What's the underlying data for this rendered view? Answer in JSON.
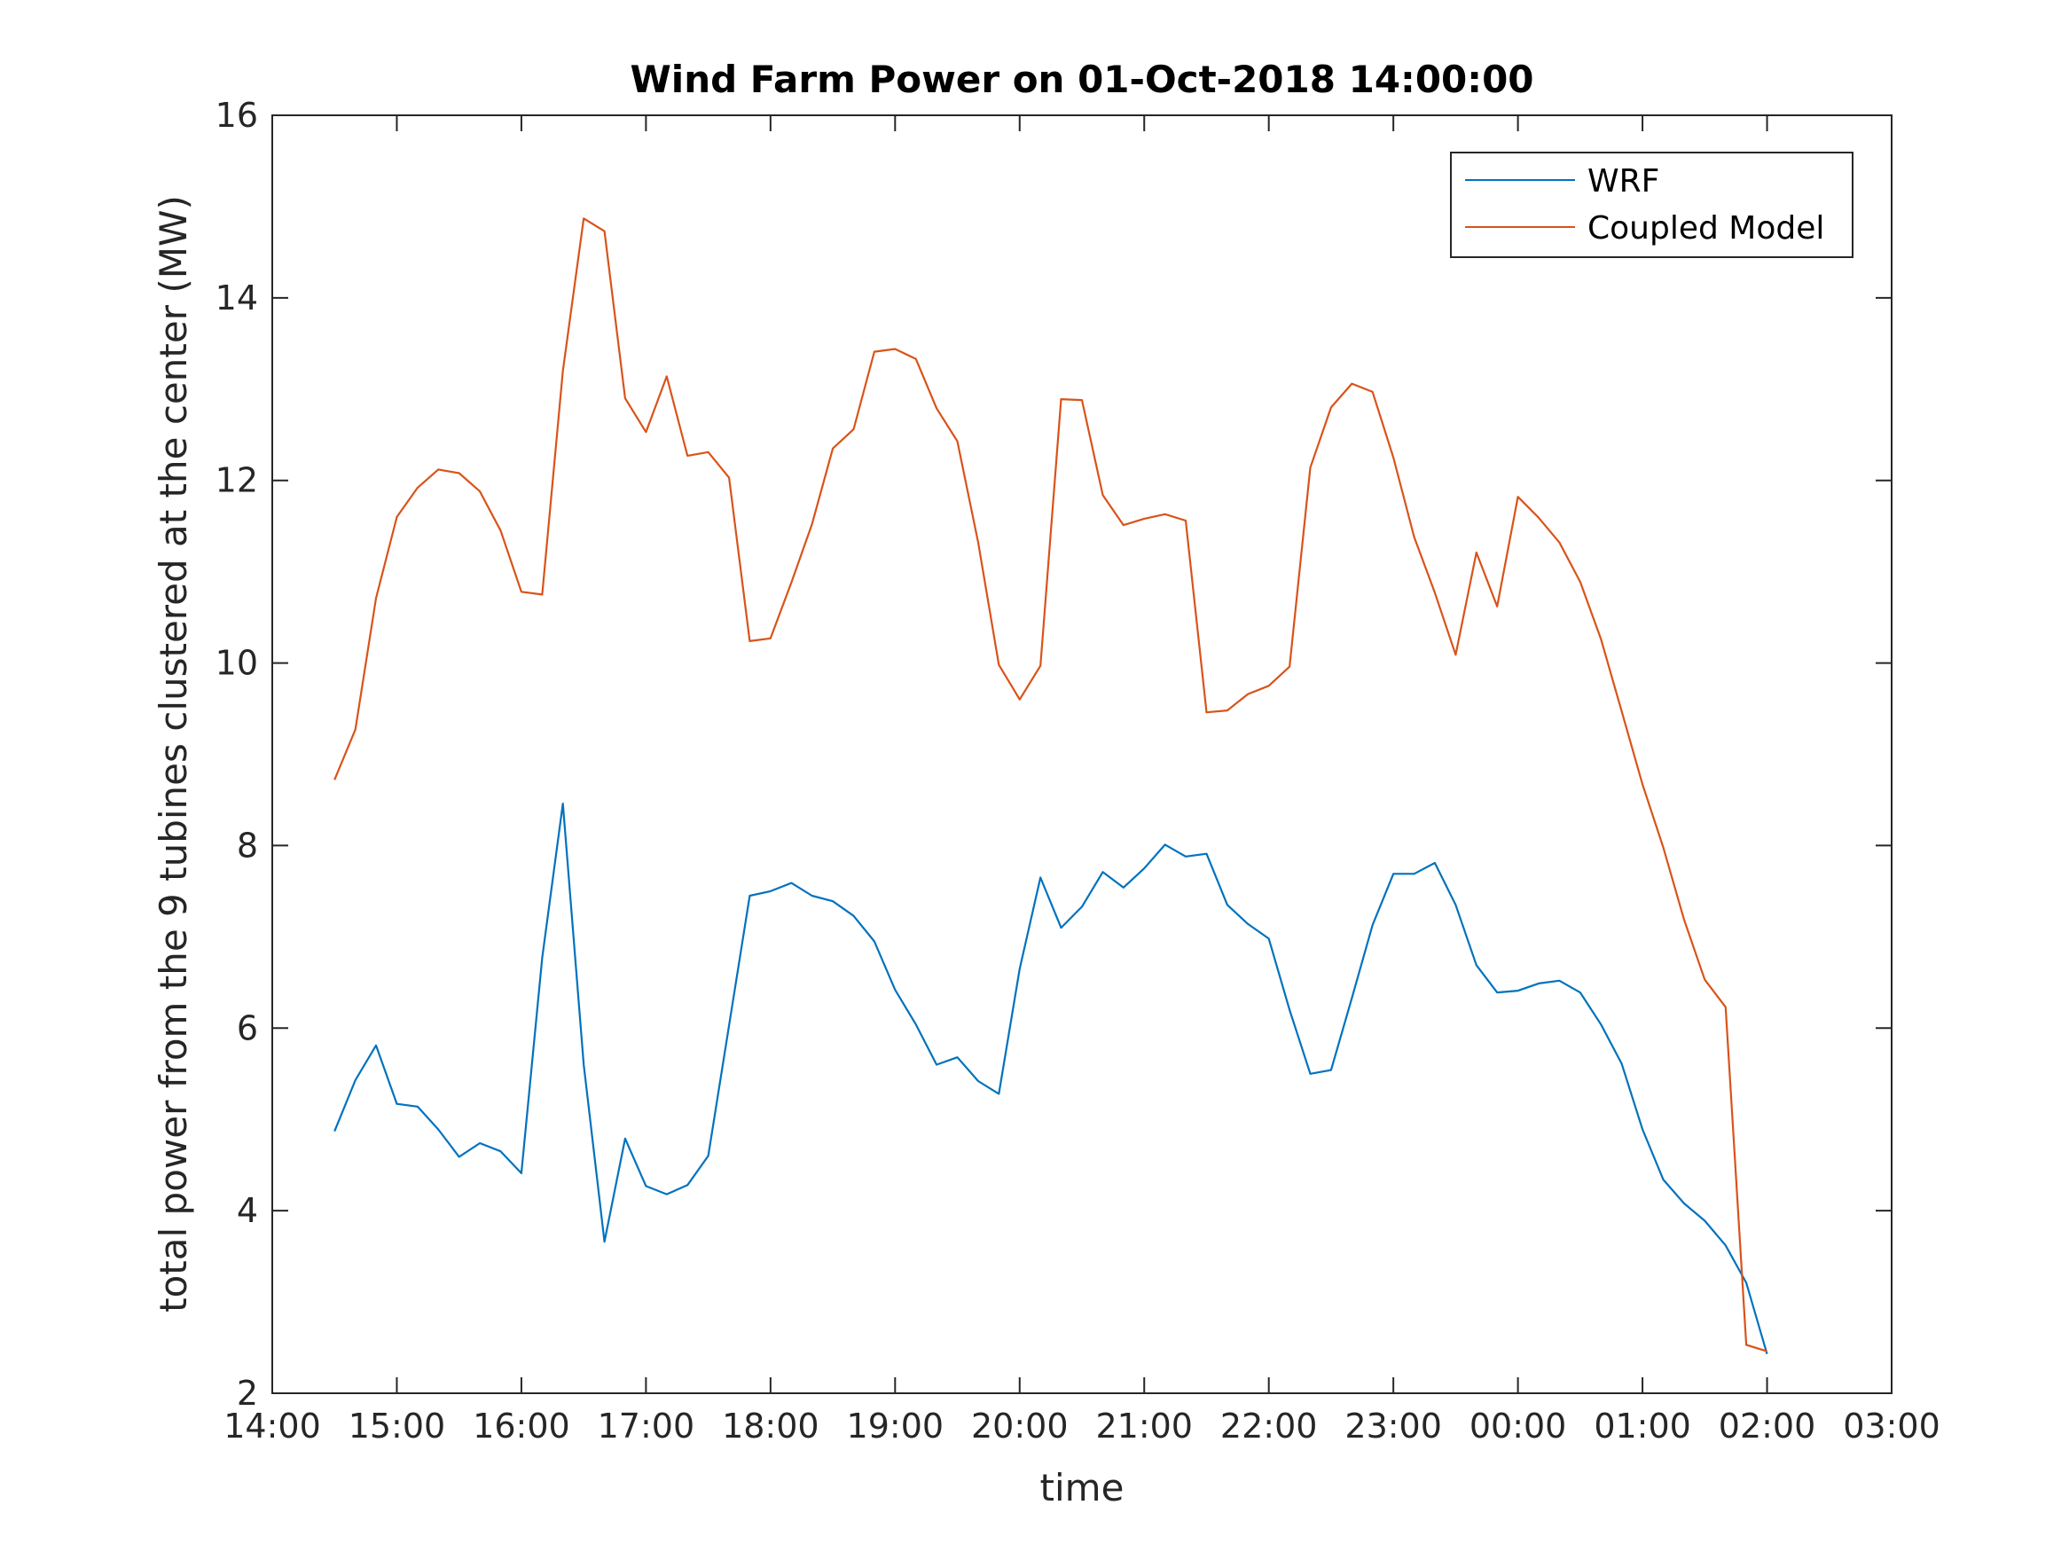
{
  "chart_data": {
    "type": "line",
    "title": "Wind Farm Power on 01-Oct-2018 14:00:00",
    "xlabel": "time",
    "ylabel": "total power from the 9 tubines clustered at the center (MW)",
    "xlim_hours": [
      14,
      27
    ],
    "ylim": [
      2,
      16
    ],
    "x_tick_labels": [
      "14:00",
      "15:00",
      "16:00",
      "17:00",
      "18:00",
      "19:00",
      "20:00",
      "21:00",
      "22:00",
      "23:00",
      "00:00",
      "01:00",
      "02:00",
      "03:00"
    ],
    "y_ticks": [
      2,
      4,
      6,
      8,
      10,
      12,
      14,
      16
    ],
    "legend_position": "top-right",
    "grid": false,
    "x": [
      14.5,
      14.667,
      14.833,
      15.0,
      15.167,
      15.333,
      15.5,
      15.667,
      15.833,
      16.0,
      16.167,
      16.333,
      16.5,
      16.667,
      16.833,
      17.0,
      17.167,
      17.333,
      17.5,
      17.667,
      17.833,
      18.0,
      18.167,
      18.333,
      18.5,
      18.667,
      18.833,
      19.0,
      19.167,
      19.333,
      19.5,
      19.667,
      19.833,
      20.0,
      20.167,
      20.333,
      20.5,
      20.667,
      20.833,
      21.0,
      21.167,
      21.333,
      21.5,
      21.667,
      21.833,
      22.0,
      22.167,
      22.333,
      22.5,
      22.667,
      22.833,
      23.0,
      23.167,
      23.333,
      23.5,
      23.667,
      23.833,
      24.0,
      24.167,
      24.333,
      24.5,
      24.667,
      24.833,
      25.0,
      25.167,
      25.333,
      25.5,
      25.667,
      25.833,
      26.0
    ],
    "series": [
      {
        "name": "WRF",
        "color": "#0072BD",
        "values": [
          4.87,
          5.43,
          5.81,
          5.17,
          5.14,
          4.89,
          4.59,
          4.74,
          4.65,
          4.41,
          6.77,
          8.46,
          5.6,
          3.66,
          4.79,
          4.27,
          4.18,
          4.28,
          4.6,
          6.03,
          7.45,
          7.5,
          7.59,
          7.45,
          7.39,
          7.23,
          6.95,
          6.42,
          6.04,
          5.6,
          5.68,
          5.42,
          5.28,
          6.65,
          7.65,
          7.1,
          7.33,
          7.71,
          7.54,
          7.75,
          8.01,
          7.88,
          7.91,
          7.35,
          7.14,
          6.98,
          6.2,
          5.5,
          5.54,
          6.33,
          7.13,
          7.69,
          7.69,
          7.81,
          7.35,
          6.69,
          6.39,
          6.41,
          6.49,
          6.52,
          6.39,
          6.04,
          5.61,
          4.89,
          4.34,
          4.08,
          3.89,
          3.62,
          3.21,
          2.43
        ]
      },
      {
        "name": "Coupled Model",
        "color": "#D95319",
        "values": [
          8.72,
          9.27,
          10.71,
          11.6,
          11.92,
          12.12,
          12.08,
          11.88,
          11.45,
          10.78,
          10.75,
          13.2,
          14.87,
          14.73,
          12.9,
          12.53,
          13.14,
          12.27,
          12.31,
          12.03,
          10.24,
          10.27,
          10.88,
          11.52,
          12.35,
          12.56,
          13.41,
          13.44,
          13.33,
          12.79,
          12.43,
          11.32,
          9.98,
          9.6,
          9.97,
          12.89,
          12.88,
          11.84,
          11.51,
          11.58,
          11.63,
          11.56,
          9.46,
          9.48,
          9.66,
          9.75,
          9.96,
          12.14,
          12.8,
          13.06,
          12.97,
          12.25,
          11.38,
          10.77,
          10.09,
          11.21,
          10.62,
          11.82,
          11.59,
          11.32,
          10.89,
          10.26,
          9.47,
          8.67,
          7.98,
          7.19,
          6.53,
          6.23,
          2.53,
          2.46
        ]
      }
    ]
  }
}
